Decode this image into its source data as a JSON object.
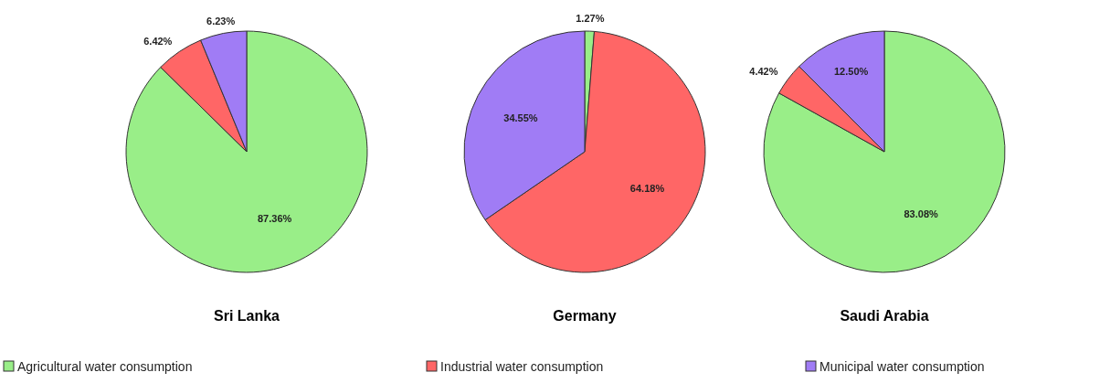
{
  "chart_data": [
    {
      "type": "pie",
      "title": "Sri Lanka",
      "categories": [
        "Agricultural water consumption",
        "Industrial water consumption",
        "Municipal water consumption"
      ],
      "values": [
        87.36,
        6.42,
        6.23
      ],
      "value_labels": [
        "87.36%",
        "6.42%",
        "6.23%"
      ],
      "colors": [
        "#99ee88",
        "#ff6666",
        "#a07cf5"
      ],
      "legend": "bottom"
    },
    {
      "type": "pie",
      "title": "Germany",
      "categories": [
        null,
        null,
        null
      ],
      "values": [
        1.27,
        64.18,
        34.55
      ],
      "value_labels": [
        "1.27%",
        "64.18%",
        "34.55%"
      ],
      "colors": [
        "#99ee88",
        "#ff6666",
        "#a07cf5"
      ]
    },
    {
      "type": "pie",
      "title": "Saudi Arabia",
      "categories": [
        null,
        null,
        null
      ],
      "values": [
        83.08,
        4.42,
        12.5
      ],
      "value_labels": [
        "83.08%",
        "4.42%",
        "12.50%"
      ],
      "colors": [
        "#99ee88",
        "#ff6666",
        "#a07cf5"
      ]
    }
  ]
}
